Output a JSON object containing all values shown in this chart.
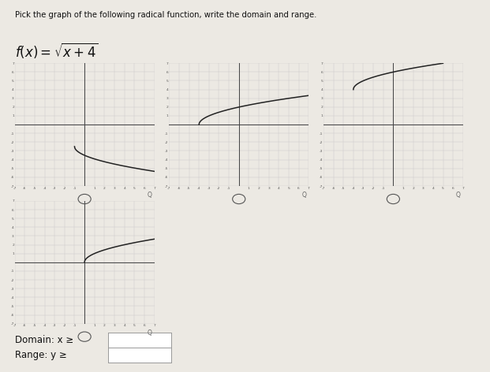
{
  "title_line1": "Pick the graph of the following radical function, write the domain and range.",
  "background_color": "#ece9e3",
  "grid_color": "#cccccc",
  "axis_color": "#444444",
  "curve_color": "#222222",
  "xlim": [
    -7,
    7
  ],
  "ylim": [
    -7,
    7
  ],
  "graphs": [
    {
      "description": "graph1_neg_sqrt_shifted",
      "curve_type": "neg_sqrt_x_minus_1"
    },
    {
      "description": "graph2_correct_sqrt_x_plus_4",
      "curve_type": "sqrt_x_plus_4"
    },
    {
      "description": "graph3_sqrt_shifted_up",
      "curve_type": "sqrt_x_plus_4_up4"
    },
    {
      "description": "graph4_sqrt_x_only",
      "curve_type": "sqrt_x_shifted"
    }
  ],
  "domain_label": "Domain: x ≥",
  "range_label": "Range: y ≥"
}
